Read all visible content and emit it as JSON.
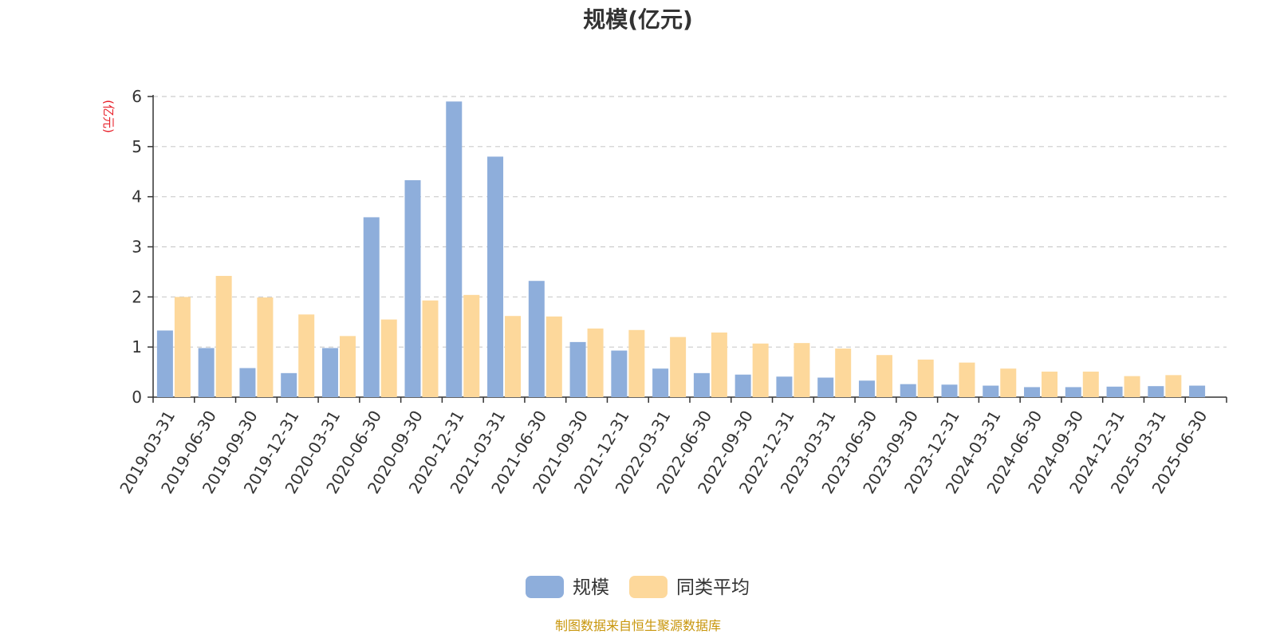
{
  "chart_data": {
    "type": "bar",
    "title": "规模(亿元)",
    "ylabel": "(亿元)",
    "xlabel": "",
    "ylim": [
      0,
      6
    ],
    "yticks": [
      0,
      1,
      2,
      3,
      4,
      5,
      6
    ],
    "grid": "horizontal-dashed",
    "legend_position": "bottom-center",
    "categories": [
      "2019-03-31",
      "2019-06-30",
      "2019-09-30",
      "2019-12-31",
      "2020-03-31",
      "2020-06-30",
      "2020-09-30",
      "2020-12-31",
      "2021-03-31",
      "2021-06-30",
      "2021-09-30",
      "2021-12-31",
      "2022-03-31",
      "2022-06-30",
      "2022-09-30",
      "2022-12-31",
      "2023-03-31",
      "2023-06-30",
      "2023-09-30",
      "2023-12-31",
      "2024-03-31",
      "2024-06-30",
      "2024-09-30",
      "2024-12-31",
      "2025-03-31",
      "2025-06-30"
    ],
    "series": [
      {
        "name": "规模",
        "color": "#8eaedb",
        "values": [
          1.33,
          0.98,
          0.58,
          0.48,
          0.98,
          3.59,
          4.33,
          5.9,
          4.8,
          2.32,
          1.1,
          0.93,
          0.57,
          0.48,
          0.45,
          0.41,
          0.39,
          0.33,
          0.26,
          0.25,
          0.23,
          0.2,
          0.2,
          0.21,
          0.22,
          0.23
        ]
      },
      {
        "name": "同类平均",
        "color": "#fdd89b",
        "values": [
          2.0,
          2.42,
          1.99,
          1.65,
          1.22,
          1.55,
          1.93,
          2.04,
          1.62,
          1.61,
          1.37,
          1.34,
          1.2,
          1.29,
          1.07,
          1.08,
          0.97,
          0.84,
          0.75,
          0.69,
          0.57,
          0.51,
          0.51,
          0.42,
          0.44,
          null
        ]
      }
    ],
    "source": "制图数据来自恒生聚源数据库"
  },
  "colors": {
    "unit_label": "#e8202a",
    "source_text": "#c8960c",
    "grid": "#cccccc",
    "axis": "#333333"
  }
}
